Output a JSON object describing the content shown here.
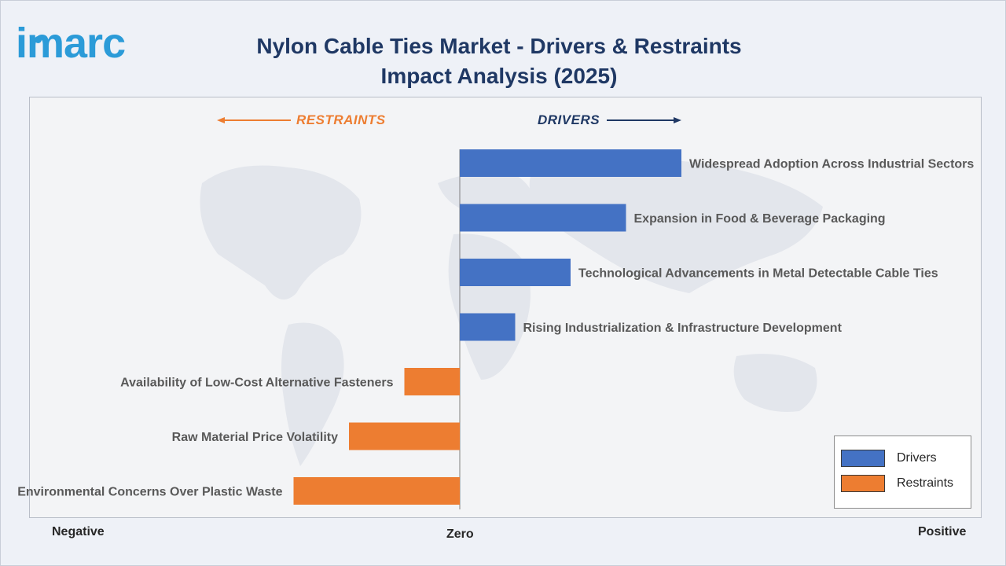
{
  "brand": {
    "logo_text": "imarc",
    "logo_color": "#2b9bd8"
  },
  "title": "Nylon Cable Ties Market - Drivers & Restraints Impact Analysis (2025)",
  "direction_labels": {
    "restraints": "RESTRAINTS",
    "drivers": "DRIVERS"
  },
  "axis_words": {
    "negative": "Negative",
    "zero": "Zero",
    "positive": "Positive"
  },
  "colors": {
    "drivers": "#4472c4",
    "restraints": "#ed7d31",
    "title": "#1f3864",
    "drivers_label": "#1f3864",
    "restraints_label": "#ed7d31"
  },
  "legend": [
    {
      "label": "Drivers",
      "color": "#4472c4"
    },
    {
      "label": "Restraints",
      "color": "#ed7d31"
    }
  ],
  "chart_data": {
    "type": "bar",
    "orientation": "horizontal",
    "title": "Nylon Cable Ties Market - Drivers & Restraints Impact Analysis (2025)",
    "xlabel": "",
    "ylabel": "",
    "x_range": [
      -3.5,
      4.2
    ],
    "bars": [
      {
        "label": "Widespread Adoption Across Industrial Sectors",
        "value": 4.0,
        "series": "Drivers"
      },
      {
        "label": "Expansion in Food & Beverage Packaging",
        "value": 3.0,
        "series": "Drivers"
      },
      {
        "label": "Technological Advancements in Metal Detectable Cable Ties",
        "value": 2.0,
        "series": "Drivers"
      },
      {
        "label": "Rising Industrialization & Infrastructure Development",
        "value": 1.0,
        "series": "Drivers"
      },
      {
        "label": "Availability of Low-Cost Alternative Fasteners",
        "value": -1.0,
        "series": "Restraints"
      },
      {
        "label": "Raw Material Price Volatility",
        "value": -2.0,
        "series": "Restraints"
      },
      {
        "label": "Environmental Concerns Over Plastic Waste",
        "value": -3.0,
        "series": "Restraints"
      }
    ],
    "legend_position": "bottom-right",
    "grid": false
  }
}
